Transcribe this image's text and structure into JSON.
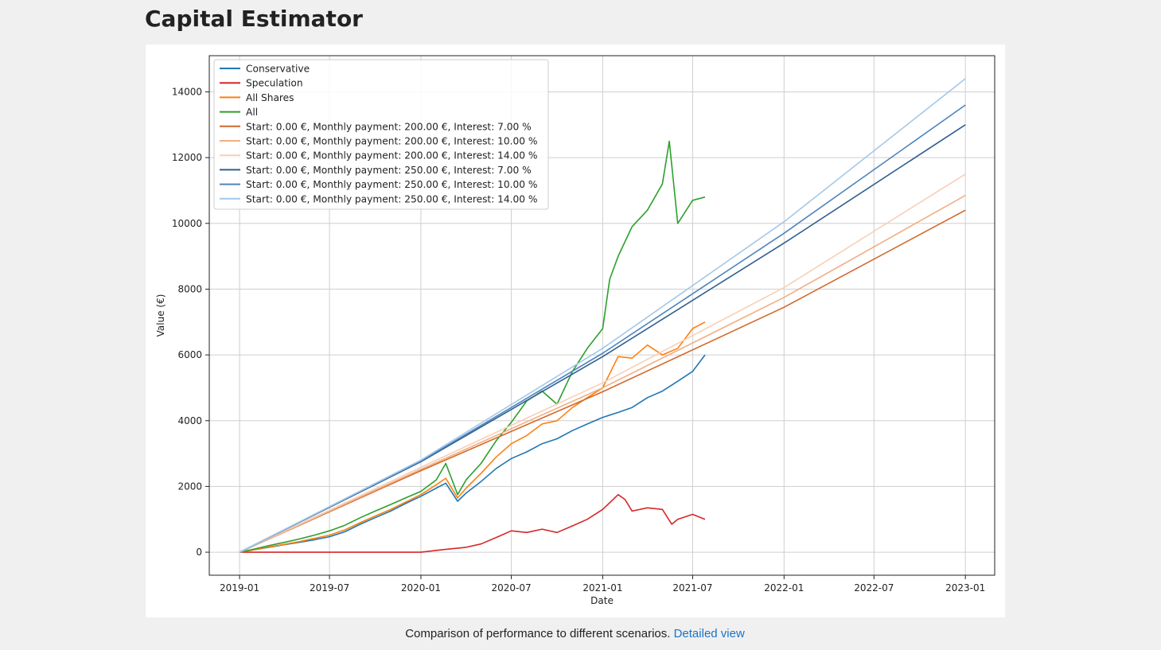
{
  "page": {
    "title": "Capital Estimator",
    "caption_text": "Comparison of performance to different scenarios.",
    "caption_link": "Detailed view"
  },
  "chart_data": {
    "type": "line",
    "title": "",
    "xlabel": "Date",
    "ylabel": "Value (€)",
    "xlim": [
      "2018-11-01",
      "2023-03-01"
    ],
    "ylim": [
      -700,
      15100
    ],
    "grid": true,
    "legend_position": "top-left",
    "x_ticks": [
      "2019-01",
      "2019-07",
      "2020-01",
      "2020-07",
      "2021-01",
      "2021-07",
      "2022-01",
      "2022-07",
      "2023-01"
    ],
    "y_ticks": [
      0,
      2000,
      4000,
      6000,
      8000,
      10000,
      12000,
      14000
    ],
    "series": [
      {
        "name": "Conservative",
        "color": "#1f77b4",
        "x": [
          "2019-01-01",
          "2019-02-01",
          "2019-03-01",
          "2019-04-01",
          "2019-05-01",
          "2019-06-01",
          "2019-07-01",
          "2019-08-01",
          "2019-09-01",
          "2019-10-01",
          "2019-11-01",
          "2019-12-01",
          "2020-01-01",
          "2020-02-01",
          "2020-02-20",
          "2020-03-15",
          "2020-04-01",
          "2020-05-01",
          "2020-06-01",
          "2020-07-01",
          "2020-08-01",
          "2020-09-01",
          "2020-10-01",
          "2020-11-01",
          "2020-12-01",
          "2021-01-01",
          "2021-02-01",
          "2021-03-01",
          "2021-04-01",
          "2021-05-01",
          "2021-06-01",
          "2021-07-01",
          "2021-07-26"
        ],
        "values": [
          0,
          80,
          150,
          230,
          300,
          380,
          470,
          620,
          850,
          1050,
          1250,
          1480,
          1700,
          1950,
          2100,
          1550,
          1800,
          2150,
          2550,
          2850,
          3050,
          3300,
          3450,
          3700,
          3900,
          4100,
          4250,
          4400,
          4700,
          4900,
          5200,
          5500,
          6000
        ]
      },
      {
        "name": "Speculation",
        "color": "#d62728",
        "x": [
          "2019-01-01",
          "2019-07-01",
          "2020-01-01",
          "2020-02-15",
          "2020-04-01",
          "2020-05-01",
          "2020-06-01",
          "2020-07-01",
          "2020-08-01",
          "2020-09-01",
          "2020-10-01",
          "2020-11-01",
          "2020-12-01",
          "2021-01-01",
          "2021-02-01",
          "2021-02-15",
          "2021-03-01",
          "2021-04-01",
          "2021-05-01",
          "2021-05-20",
          "2021-06-01",
          "2021-07-01",
          "2021-07-26"
        ],
        "values": [
          0,
          0,
          0,
          80,
          150,
          250,
          450,
          650,
          600,
          700,
          600,
          800,
          1000,
          1300,
          1750,
          1600,
          1250,
          1350,
          1300,
          850,
          1000,
          1150,
          1000
        ]
      },
      {
        "name": "All Shares",
        "color": "#ff7f0e",
        "x": [
          "2019-01-01",
          "2019-02-01",
          "2019-03-01",
          "2019-04-01",
          "2019-05-01",
          "2019-06-01",
          "2019-07-01",
          "2019-08-01",
          "2019-09-01",
          "2019-10-01",
          "2019-11-01",
          "2019-12-01",
          "2020-01-01",
          "2020-02-01",
          "2020-02-20",
          "2020-03-15",
          "2020-04-01",
          "2020-05-01",
          "2020-06-01",
          "2020-07-01",
          "2020-08-01",
          "2020-09-01",
          "2020-10-01",
          "2020-11-01",
          "2020-12-01",
          "2021-01-01",
          "2021-02-01",
          "2021-03-01",
          "2021-04-01",
          "2021-05-01",
          "2021-06-01",
          "2021-07-01",
          "2021-07-26"
        ],
        "values": [
          0,
          80,
          160,
          240,
          320,
          420,
          520,
          680,
          900,
          1100,
          1300,
          1520,
          1750,
          2050,
          2250,
          1650,
          1950,
          2400,
          2900,
          3300,
          3550,
          3900,
          4000,
          4400,
          4700,
          5000,
          5950,
          5900,
          6300,
          6000,
          6200,
          6800,
          7000
        ]
      },
      {
        "name": "All",
        "color": "#2ca02c",
        "x": [
          "2019-01-01",
          "2019-02-01",
          "2019-03-01",
          "2019-04-01",
          "2019-05-01",
          "2019-06-01",
          "2019-07-01",
          "2019-08-01",
          "2019-09-01",
          "2019-10-01",
          "2019-11-01",
          "2019-12-01",
          "2020-01-01",
          "2020-02-01",
          "2020-02-20",
          "2020-03-15",
          "2020-04-01",
          "2020-05-01",
          "2020-06-01",
          "2020-07-01",
          "2020-08-01",
          "2020-09-01",
          "2020-10-01",
          "2020-11-01",
          "2020-12-01",
          "2021-01-01",
          "2021-01-15",
          "2021-02-01",
          "2021-03-01",
          "2021-04-01",
          "2021-05-01",
          "2021-05-15",
          "2021-06-01",
          "2021-07-01",
          "2021-07-26"
        ],
        "values": [
          0,
          100,
          200,
          300,
          400,
          520,
          650,
          820,
          1050,
          1250,
          1450,
          1650,
          1850,
          2200,
          2700,
          1750,
          2200,
          2700,
          3400,
          3950,
          4600,
          4900,
          4500,
          5500,
          6200,
          6800,
          8300,
          9000,
          9900,
          10400,
          11200,
          12500,
          10000,
          10700,
          10800
        ]
      },
      {
        "name": "Start: 0.00 €, Monthly payment: 200.00 €, Interest: 7.00 %",
        "color": "#d0692a",
        "x": [
          "2019-01-01",
          "2020-01-01",
          "2021-01-01",
          "2022-01-01",
          "2023-01-01"
        ],
        "values": [
          0,
          2480,
          4880,
          7450,
          10400
        ]
      },
      {
        "name": "Start: 0.00 €, Monthly payment: 200.00 €, Interest: 10.00 %",
        "color": "#f2ae84",
        "x": [
          "2019-01-01",
          "2020-01-01",
          "2021-01-01",
          "2022-01-01",
          "2023-01-01"
        ],
        "values": [
          0,
          2520,
          5000,
          7750,
          10850
        ]
      },
      {
        "name": "Start: 0.00 €, Monthly payment: 200.00 €, Interest: 14.00 %",
        "color": "#f8cfb6",
        "x": [
          "2019-01-01",
          "2020-01-01",
          "2021-01-01",
          "2022-01-01",
          "2023-01-01"
        ],
        "values": [
          0,
          2580,
          5150,
          8050,
          11500
        ]
      },
      {
        "name": "Start: 0.00 €, Monthly payment: 250.00 €, Interest: 7.00 %",
        "color": "#2f5f8f",
        "x": [
          "2019-01-01",
          "2020-01-01",
          "2021-01-01",
          "2022-01-01",
          "2023-01-01"
        ],
        "values": [
          0,
          2750,
          5950,
          9400,
          13000
        ]
      },
      {
        "name": "Start: 0.00 €, Monthly payment: 250.00 €, Interest: 10.00 %",
        "color": "#4d84bd",
        "x": [
          "2019-01-01",
          "2020-01-01",
          "2021-01-01",
          "2022-01-01",
          "2023-01-01"
        ],
        "values": [
          0,
          2770,
          6050,
          9700,
          13600
        ]
      },
      {
        "name": "Start: 0.00 €, Monthly payment: 250.00 €, Interest: 14.00 %",
        "color": "#a3c8e8",
        "x": [
          "2019-01-01",
          "2020-01-01",
          "2021-01-01",
          "2022-01-01",
          "2023-01-01"
        ],
        "values": [
          0,
          2800,
          6200,
          10050,
          14400
        ]
      }
    ]
  }
}
